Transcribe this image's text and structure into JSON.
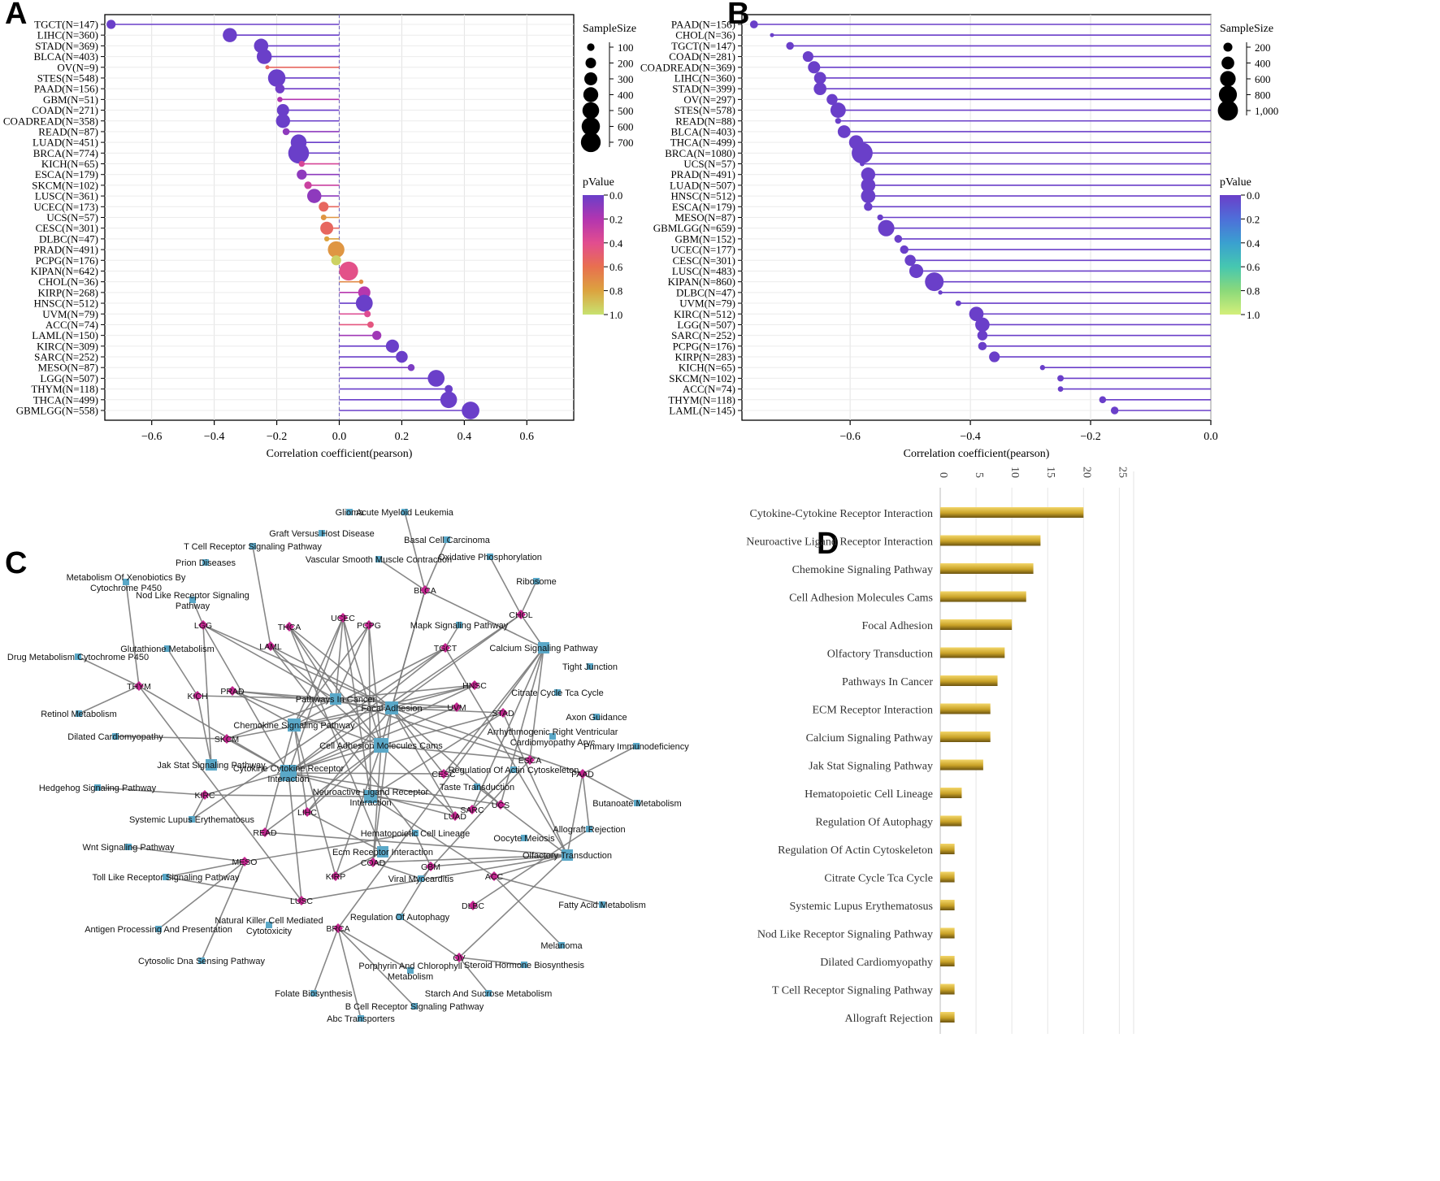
{
  "figure": {
    "panel_labels": [
      "A",
      "B",
      "C",
      "D"
    ]
  },
  "chart_data": [
    {
      "panel": "A",
      "type": "lollipop",
      "xlabel": "Correlation coefficient(pearson)",
      "xlim": [
        -0.75,
        0.75
      ],
      "xticks": [
        -0.6,
        -0.4,
        -0.2,
        0.0,
        0.2,
        0.4,
        0.6
      ],
      "xtick_labels": [
        "−0.6",
        "−0.4",
        "−0.2",
        "0.0",
        "0.2",
        "0.4",
        "0.6"
      ],
      "size_legend": {
        "title": "SampleSize",
        "values": [
          100,
          200,
          300,
          400,
          500,
          600,
          700
        ],
        "labels": [
          "100",
          "200",
          "300",
          "400",
          "500",
          "600",
          "700"
        ]
      },
      "color_legend": {
        "title": "pValue",
        "ticks": [
          0.0,
          0.2,
          0.4,
          0.6,
          0.8,
          1.0
        ],
        "labels": [
          "0.0",
          "0.2",
          "0.4",
          "0.6",
          "0.8",
          "1.0"
        ],
        "colors": [
          "#6a3fc9",
          "#b235b0",
          "#e24d8f",
          "#e8704f",
          "#dca33f",
          "#c8e270"
        ]
      },
      "categories": [
        "TGCT(N=147)",
        "LIHC(N=360)",
        "STAD(N=369)",
        "BLCA(N=403)",
        "OV(N=9)",
        "STES(N=548)",
        "PAAD(N=156)",
        "GBM(N=51)",
        "COAD(N=271)",
        "COADREAD(N=358)",
        "READ(N=87)",
        "LUAD(N=451)",
        "BRCA(N=774)",
        "KICH(N=65)",
        "ESCA(N=179)",
        "SKCM(N=102)",
        "LUSC(N=361)",
        "UCEC(N=173)",
        "UCS(N=57)",
        "CESC(N=301)",
        "DLBC(N=47)",
        "PRAD(N=491)",
        "PCPG(N=176)",
        "KIPAN(N=642)",
        "CHOL(N=36)",
        "KIRP(N=268)",
        "HNSC(N=512)",
        "UVM(N=79)",
        "ACC(N=74)",
        "LAML(N=150)",
        "KIRC(N=309)",
        "SARC(N=252)",
        "MESO(N=87)",
        "LGG(N=507)",
        "THYM(N=118)",
        "THCA(N=499)",
        "GBMLGG(N=558)"
      ],
      "values": [
        -0.73,
        -0.35,
        -0.25,
        -0.24,
        -0.23,
        -0.2,
        -0.19,
        -0.19,
        -0.18,
        -0.18,
        -0.17,
        -0.13,
        -0.13,
        -0.12,
        -0.12,
        -0.1,
        -0.08,
        -0.05,
        -0.05,
        -0.04,
        -0.04,
        -0.01,
        -0.01,
        0.03,
        0.07,
        0.08,
        0.08,
        0.09,
        0.1,
        0.12,
        0.17,
        0.2,
        0.23,
        0.31,
        0.35,
        0.35,
        0.42
      ],
      "sizes": [
        147,
        360,
        369,
        403,
        9,
        548,
        156,
        51,
        271,
        358,
        87,
        451,
        774,
        65,
        179,
        102,
        361,
        173,
        57,
        301,
        47,
        491,
        176,
        642,
        36,
        268,
        512,
        79,
        74,
        150,
        309,
        252,
        87,
        507,
        118,
        499,
        558
      ],
      "pvalues": [
        0.0,
        0.0,
        0.0,
        0.0,
        0.55,
        0.0,
        0.02,
        0.2,
        0.0,
        0.0,
        0.1,
        0.0,
        0.0,
        0.35,
        0.1,
        0.3,
        0.1,
        0.55,
        0.75,
        0.55,
        0.8,
        0.75,
        0.95,
        0.42,
        0.7,
        0.22,
        0.0,
        0.38,
        0.45,
        0.15,
        0.0,
        0.0,
        0.05,
        0.0,
        0.0,
        0.0,
        0.0
      ]
    },
    {
      "panel": "B",
      "type": "lollipop",
      "xlabel": "Correlation coefficient(pearson)",
      "xlim": [
        -0.78,
        0.0
      ],
      "xticks": [
        -0.6,
        -0.4,
        -0.2,
        0.0
      ],
      "xtick_labels": [
        "−0.6",
        "−0.4",
        "−0.2",
        "0.0"
      ],
      "size_legend": {
        "title": "SampleSize",
        "values": [
          200,
          400,
          600,
          800,
          1000
        ],
        "labels": [
          "200",
          "400",
          "600",
          "800",
          "1,000"
        ]
      },
      "color_legend": {
        "title": "pValue",
        "ticks": [
          0.0,
          0.2,
          0.4,
          0.6,
          0.8,
          1.0
        ],
        "labels": [
          "0.0",
          "0.2",
          "0.4",
          "0.6",
          "0.8",
          "1.0"
        ],
        "colors": [
          "#6a3fc9",
          "#4e6fd9",
          "#3aa0d0",
          "#46c7b0",
          "#8bd97a",
          "#d4ef7a"
        ]
      },
      "categories": [
        "PAAD(N=156)",
        "CHOL(N=36)",
        "TGCT(N=147)",
        "COAD(N=281)",
        "COADREAD(N=369)",
        "LIHC(N=360)",
        "STAD(N=399)",
        "OV(N=297)",
        "STES(N=578)",
        "READ(N=88)",
        "BLCA(N=403)",
        "THCA(N=499)",
        "BRCA(N=1080)",
        "UCS(N=57)",
        "PRAD(N=491)",
        "LUAD(N=507)",
        "HNSC(N=512)",
        "ESCA(N=179)",
        "MESO(N=87)",
        "GBMLGG(N=659)",
        "GBM(N=152)",
        "UCEC(N=177)",
        "CESC(N=301)",
        "LUSC(N=483)",
        "KIPAN(N=860)",
        "DLBC(N=47)",
        "UVM(N=79)",
        "KIRC(N=512)",
        "LGG(N=507)",
        "SARC(N=252)",
        "PCPG(N=176)",
        "KIRP(N=283)",
        "KICH(N=65)",
        "SKCM(N=102)",
        "ACC(N=74)",
        "THYM(N=118)",
        "LAML(N=145)"
      ],
      "values": [
        -0.76,
        -0.73,
        -0.7,
        -0.67,
        -0.66,
        -0.65,
        -0.65,
        -0.63,
        -0.62,
        -0.62,
        -0.61,
        -0.59,
        -0.58,
        -0.58,
        -0.57,
        -0.57,
        -0.57,
        -0.57,
        -0.55,
        -0.54,
        -0.52,
        -0.51,
        -0.5,
        -0.49,
        -0.46,
        -0.45,
        -0.42,
        -0.39,
        -0.38,
        -0.38,
        -0.38,
        -0.36,
        -0.28,
        -0.25,
        -0.25,
        -0.18,
        -0.16
      ],
      "sizes": [
        156,
        36,
        147,
        281,
        369,
        360,
        399,
        297,
        578,
        88,
        403,
        499,
        1080,
        57,
        491,
        507,
        512,
        179,
        87,
        659,
        152,
        177,
        301,
        483,
        860,
        47,
        79,
        512,
        507,
        252,
        176,
        283,
        65,
        102,
        74,
        118,
        145
      ],
      "pvalues": [
        0.0,
        0.0,
        0.0,
        0.0,
        0.0,
        0.0,
        0.0,
        0.0,
        0.0,
        0.0,
        0.0,
        0.0,
        0.0,
        0.0,
        0.0,
        0.0,
        0.0,
        0.0,
        0.0,
        0.0,
        0.0,
        0.0,
        0.0,
        0.0,
        0.0,
        0.0,
        0.0,
        0.0,
        0.0,
        0.0,
        0.0,
        0.0,
        0.0,
        0.0,
        0.0,
        0.0,
        0.0
      ]
    },
    {
      "panel": "D",
      "type": "bar",
      "orientation": "horizontal",
      "xlim": [
        0,
        27
      ],
      "xticks": [
        0,
        5,
        10,
        15,
        20,
        25
      ],
      "xtick_labels": [
        "0",
        "5",
        "10",
        "15",
        "20",
        "25"
      ],
      "categories": [
        "Cytokine-Cytokine Receptor Interaction",
        "Neuroactive Ligand Receptor Interaction",
        "Chemokine Signaling Pathway",
        "Cell Adhesion Molecules Cams",
        "Focal Adhesion",
        "Olfactory Transduction",
        "Pathways In Cancer",
        "ECM Receptor Interaction",
        "Calcium Signaling Pathway",
        "Jak Stat Signaling Pathway",
        "Hematopoietic Cell Lineage",
        "Regulation Of Autophagy",
        "Regulation Of Actin Cytoskeleton",
        "Citrate Cycle Tca Cycle",
        "Systemic Lupus Erythematosus",
        "Nod Like Receptor Signaling Pathway",
        "Dilated Cardiomyopathy",
        "T Cell Receptor Signaling Pathway",
        "Allograft Rejection"
      ],
      "values": [
        20,
        14,
        13,
        12,
        10,
        9,
        8,
        7,
        7,
        6,
        3,
        3,
        2,
        2,
        2,
        2,
        2,
        2,
        2
      ],
      "bar_color": "#c9a227"
    }
  ],
  "network": {
    "cancers": [
      "BLCA",
      "CHOL",
      "UCEC",
      "PCPG",
      "THCA",
      "LGG",
      "LAML",
      "TGCT",
      "HNSC",
      "THYM",
      "KICH",
      "PRAD",
      "UVM",
      "STAD",
      "SKCM",
      "ESCA",
      "PAAD",
      "CESC",
      "KIRC",
      "SARC",
      "UCS",
      "LIHC",
      "LUAD",
      "READ",
      "MESO",
      "KIRP",
      "COAD",
      "GBM",
      "ACC",
      "LUSC",
      "DLBC",
      "BRCA",
      "OV"
    ],
    "pathways": [
      "Glioma",
      "Acute Myeloid Leukemia",
      "Graft Versus Host Disease",
      "Basal Cell Carcinoma",
      "T Cell Receptor Signaling Pathway",
      "Prion Diseases",
      "Vascular Smooth Muscle Contraction",
      "Oxidative Phosphorylation",
      "Metabolism Of Xenobiotics By Cytochrome P450",
      "Nod Like Receptor Signaling Pathway",
      "Ribosome",
      "Mapk Signaling Pathway",
      "Glutathione Metabolism",
      "Calcium Signaling Pathway",
      "Drug Metabolism Cytochrome P450",
      "Tight Junction",
      "Citrate Cycle Tca Cycle",
      "Pathways In Cancer",
      "Focal Adhesion",
      "Retinol Metabolism",
      "Axon Guidance",
      "Chemokine Signaling Pathway",
      "Dilated Cardiomyopathy",
      "Arrhythmogenic Right Ventricular Cardiomyopathy Arvc",
      "Cell Adhesion Molecules Cams",
      "Primary Immunodeficiency",
      "Jak Stat Signaling Pathway",
      "Cytokine Cytokine Receptor Interaction",
      "Regulation Of Actin Cytoskeleton",
      "Hedgehog Signaling Pathway",
      "Neuroactive Ligand Receptor Interaction",
      "Taste Transduction",
      "Butanoate Metabolism",
      "Systemic Lupus Erythematosus",
      "Allograft Rejection",
      "Hematopoietic Cell Lineage",
      "Oocyte Meiosis",
      "Wnt Signaling Pathway",
      "Ecm Receptor Interaction",
      "Olfactory Transduction",
      "Viral Myocarditis",
      "Toll Like Receptor Signaling Pathway",
      "Fatty Acid Metabolism",
      "Regulation Of Autophagy",
      "Natural Killer Cell Mediated Cytotoxicity",
      "Antigen Processing And Presentation",
      "Melanoma",
      "Porphyrin And Chlorophyll Metabolism",
      "Steroid Hormone Biosynthesis",
      "Cytosolic Dna Sensing Pathway",
      "Starch And Sucrose Metabolism",
      "Folate Biosynthesis",
      "B Cell Receptor Signaling Pathway",
      "Abc Transporters"
    ],
    "cancer_color": "#c2258f",
    "pathway_color": "#5aa8c8",
    "edge_color": "#7a7a7a"
  }
}
